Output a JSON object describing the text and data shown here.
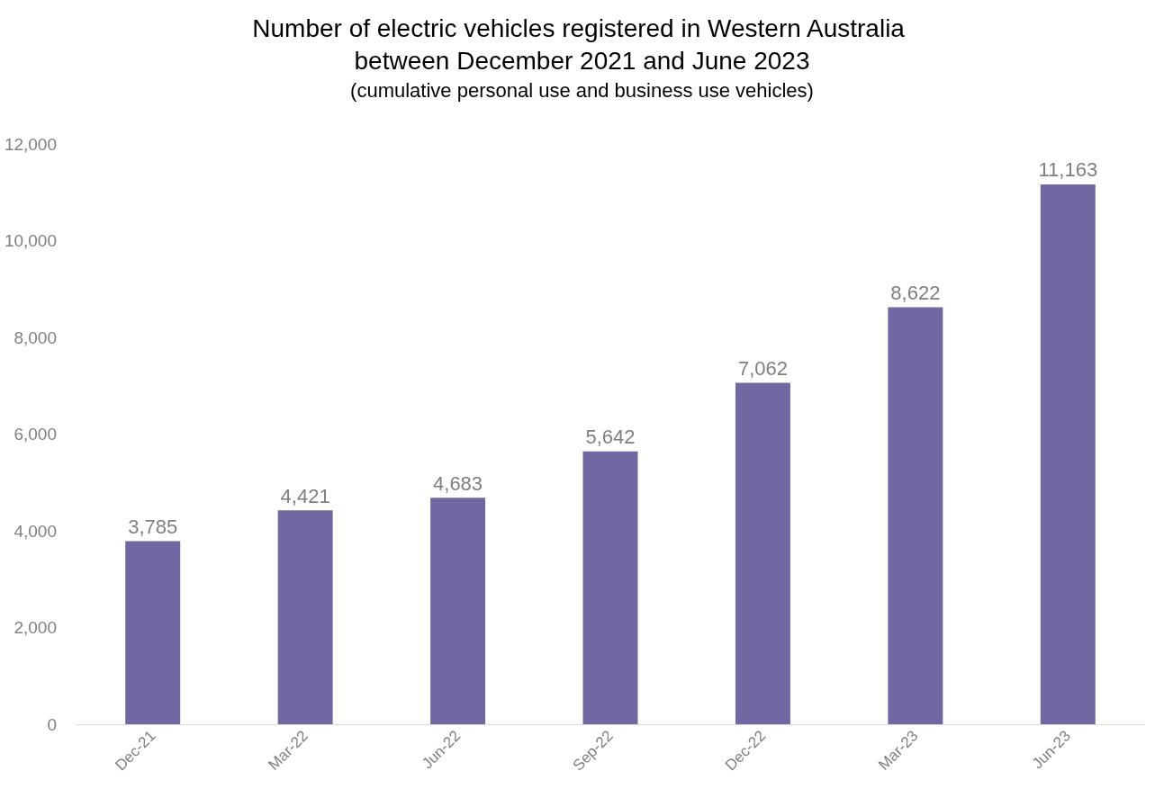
{
  "chart_data": {
    "type": "bar",
    "title": "Number of electric vehicles registered in Western Australia between December 2021 and June 2023",
    "subtitle": "(cumulative personal use and business use vehicles)",
    "categories": [
      "Dec-21",
      "Mar-22",
      "Jun-22",
      "Sep-22",
      "Dec-22",
      "Mar-23",
      "Jun-23"
    ],
    "values": [
      3785,
      4421,
      4683,
      5642,
      7062,
      8622,
      11163
    ],
    "value_labels": [
      "3,785",
      "4,421",
      "4,683",
      "5,642",
      "7,062",
      "8,622",
      "11,163"
    ],
    "color": "#7068a2",
    "ylim": [
      0,
      12000
    ],
    "yticks": [
      0,
      {
        "value": 2000,
        "label": "2,000"
      },
      {
        "value": 4000,
        "label": "4,000"
      },
      {
        "value": 6000,
        "label": "6,000"
      },
      {
        "value": 8000,
        "label": "8,000"
      },
      {
        "value": 10000,
        "label": "10,000"
      },
      {
        "value": 12000,
        "label": "12,000"
      }
    ],
    "grid": false
  }
}
